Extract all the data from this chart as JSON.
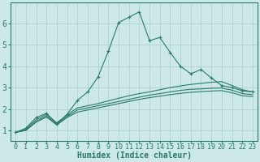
{
  "xlabel": "Humidex (Indice chaleur)",
  "xlim": [
    -0.5,
    23.5
  ],
  "ylim": [
    0.5,
    7.0
  ],
  "yticks": [
    1,
    2,
    3,
    4,
    5,
    6
  ],
  "xticks": [
    0,
    1,
    2,
    3,
    4,
    5,
    6,
    7,
    8,
    9,
    10,
    11,
    12,
    13,
    14,
    15,
    16,
    17,
    18,
    19,
    20,
    21,
    22,
    23
  ],
  "bg_color": "#cce8e8",
  "grid_color": "#aacccc",
  "line_color": "#2a7a6a",
  "line1_x": [
    0,
    1,
    2,
    3,
    4,
    5,
    6,
    7,
    8,
    9,
    10,
    11,
    12,
    13,
    14,
    15,
    16,
    17,
    18,
    19,
    20,
    21,
    22,
    23
  ],
  "line1_y": [
    0.9,
    1.1,
    1.6,
    1.8,
    1.3,
    1.75,
    2.4,
    2.8,
    3.5,
    4.7,
    6.05,
    6.3,
    6.55,
    5.2,
    5.35,
    4.65,
    4.0,
    3.65,
    3.85,
    3.45,
    3.1,
    3.0,
    2.85,
    2.8
  ],
  "line2_x": [
    0,
    1,
    2,
    3,
    4,
    5,
    6,
    7,
    8,
    9,
    10,
    11,
    12,
    13,
    14,
    15,
    16,
    17,
    18,
    19,
    20,
    21,
    22,
    23
  ],
  "line2_y": [
    0.9,
    1.05,
    1.5,
    1.75,
    1.35,
    1.72,
    2.05,
    2.15,
    2.25,
    2.38,
    2.5,
    2.62,
    2.72,
    2.8,
    2.9,
    3.0,
    3.08,
    3.15,
    3.2,
    3.25,
    3.28,
    3.1,
    2.9,
    2.8
  ],
  "line3_x": [
    0,
    1,
    2,
    3,
    4,
    5,
    6,
    7,
    8,
    9,
    10,
    11,
    12,
    13,
    14,
    15,
    16,
    17,
    18,
    19,
    20,
    21,
    22,
    23
  ],
  "line3_y": [
    0.9,
    1.0,
    1.42,
    1.68,
    1.28,
    1.65,
    1.95,
    2.05,
    2.15,
    2.25,
    2.35,
    2.45,
    2.55,
    2.65,
    2.72,
    2.8,
    2.87,
    2.92,
    2.94,
    2.97,
    2.98,
    2.88,
    2.72,
    2.67
  ],
  "line4_x": [
    0,
    1,
    2,
    3,
    4,
    5,
    6,
    7,
    8,
    9,
    10,
    11,
    12,
    13,
    14,
    15,
    16,
    17,
    18,
    19,
    20,
    21,
    22,
    23
  ],
  "line4_y": [
    0.9,
    1.0,
    1.38,
    1.62,
    1.25,
    1.6,
    1.85,
    1.95,
    2.05,
    2.15,
    2.25,
    2.35,
    2.45,
    2.53,
    2.6,
    2.67,
    2.73,
    2.78,
    2.81,
    2.84,
    2.86,
    2.76,
    2.62,
    2.58
  ],
  "tick_fontsize": 6,
  "xlabel_fontsize": 7,
  "marker_size": 3,
  "linewidth": 0.8
}
